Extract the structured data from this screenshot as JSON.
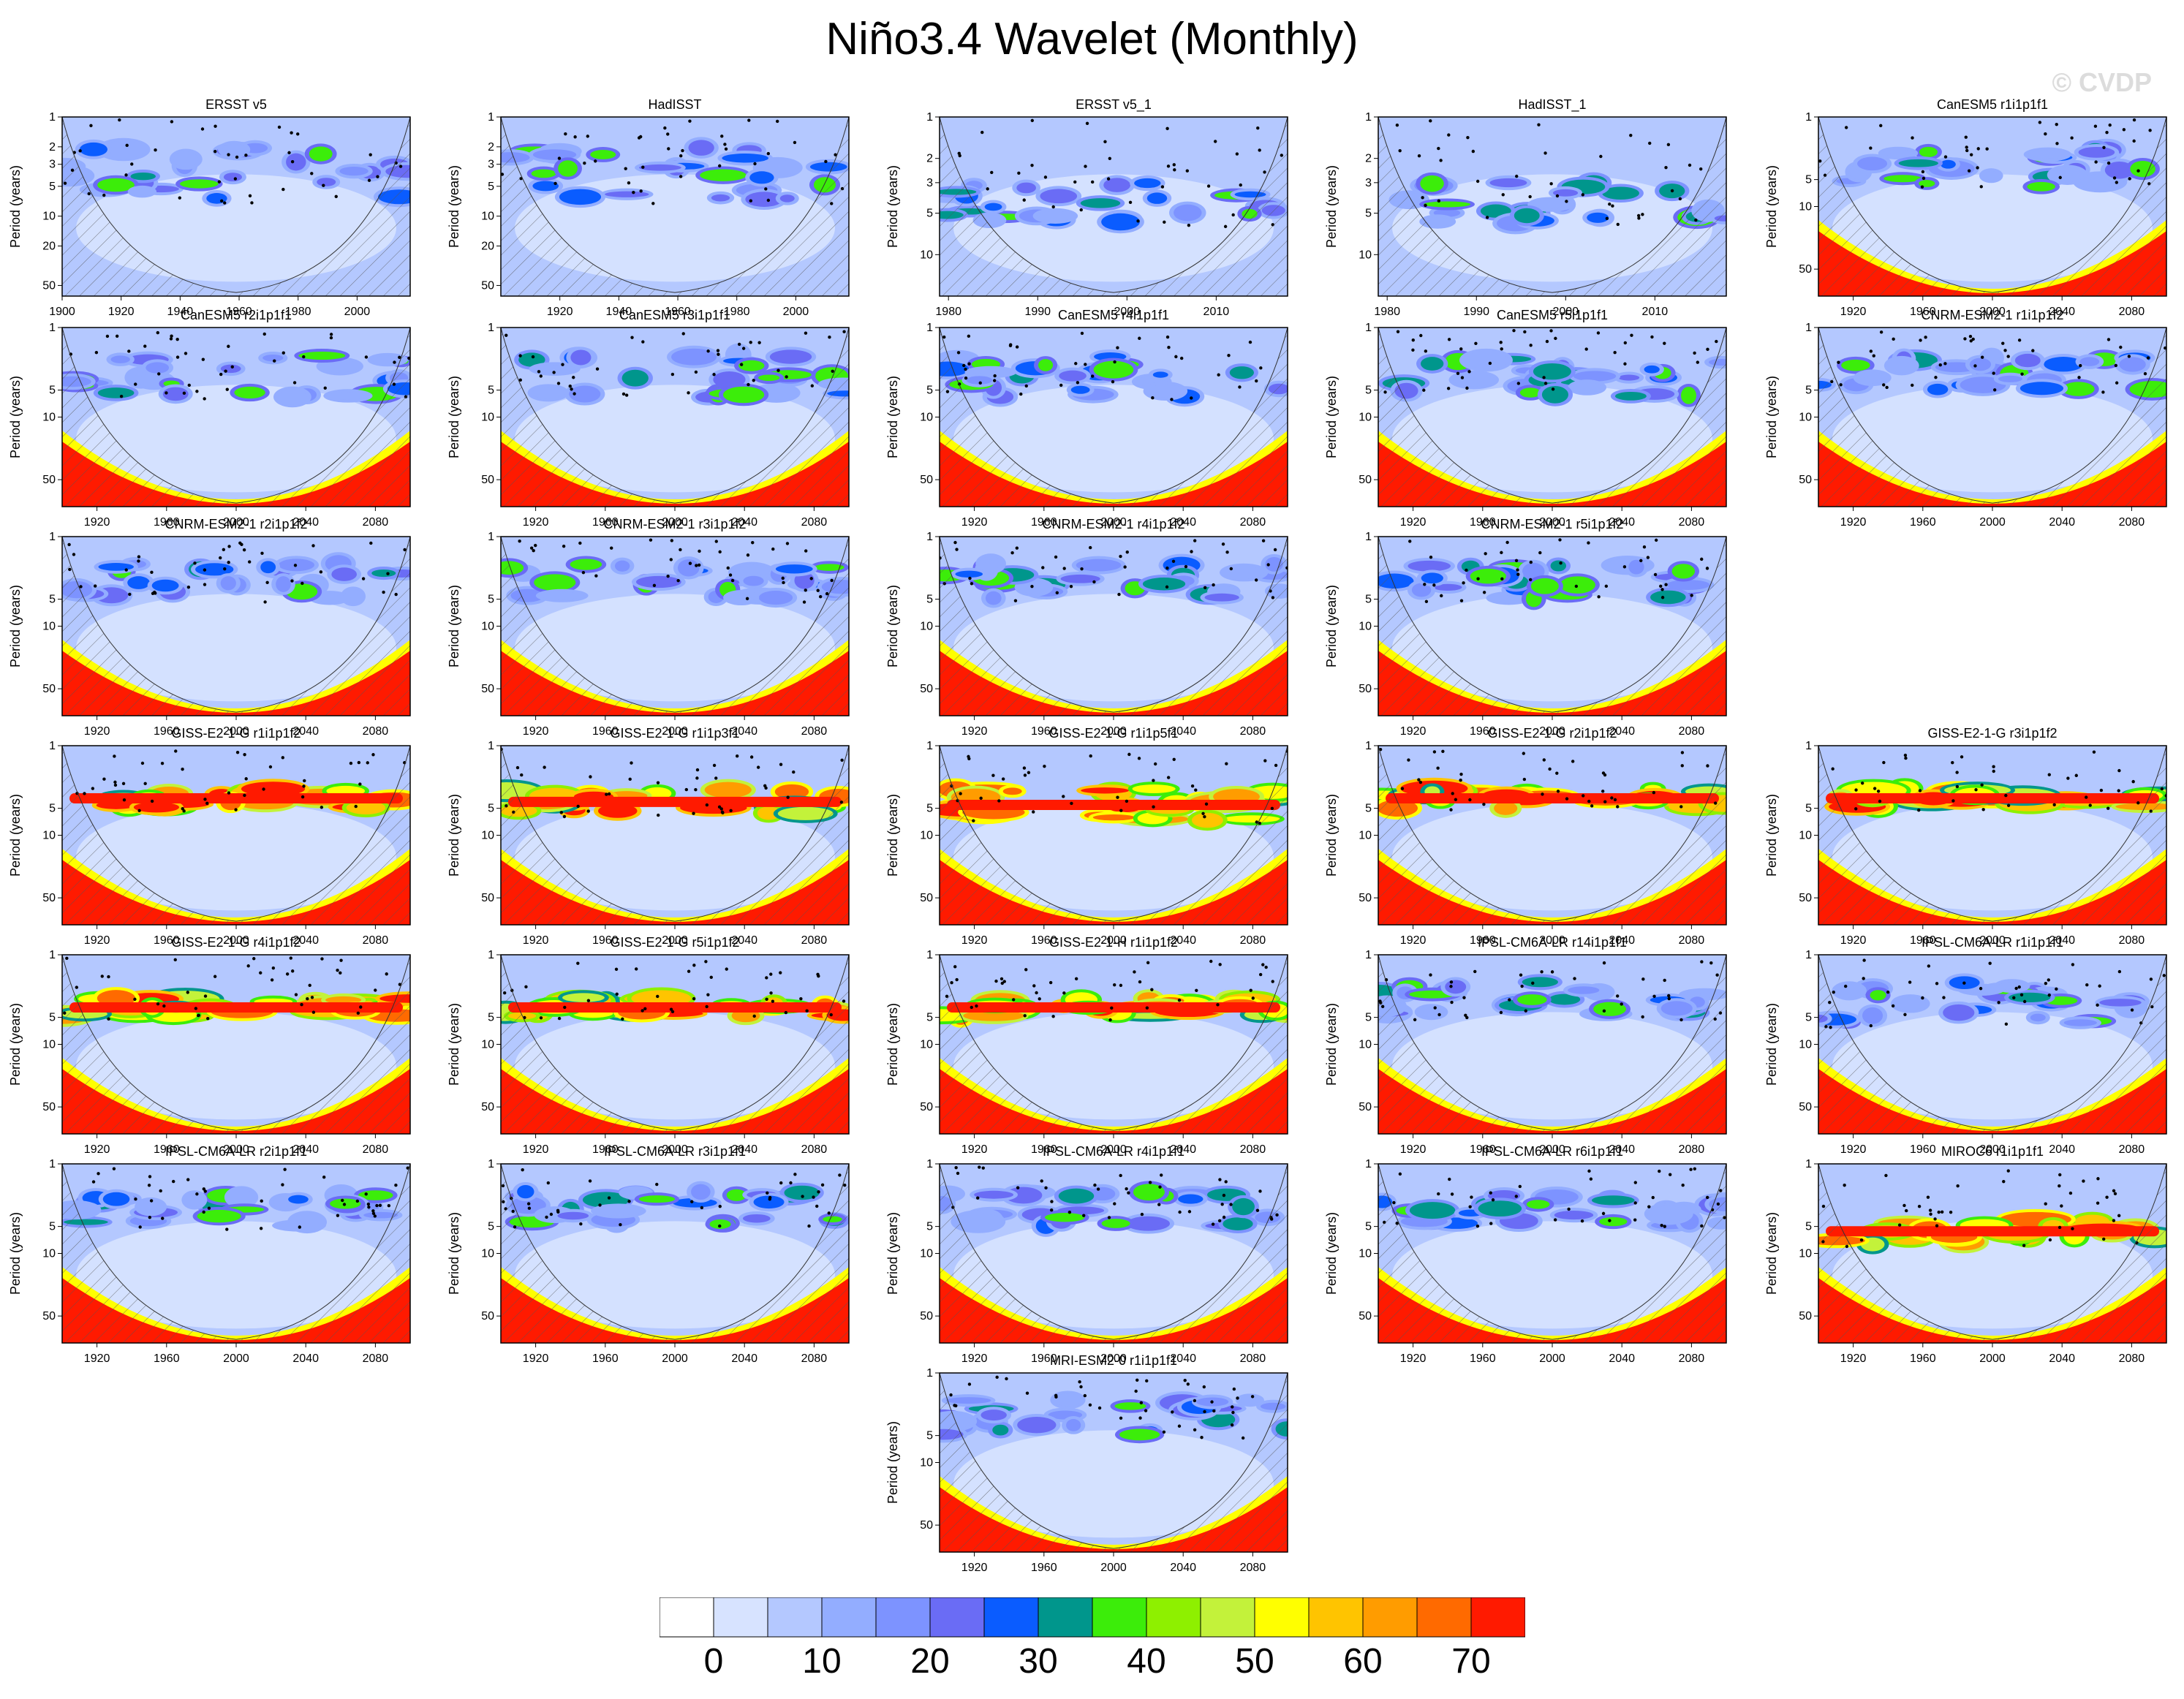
{
  "title": "Niño3.4 Wavelet (Monthly)",
  "watermark": "© CVDP",
  "colors": {
    "levels": [
      "#ffffff",
      "#d7e3ff",
      "#b4c8ff",
      "#93adff",
      "#7d93ff",
      "#6a6cf5",
      "#0a5cff",
      "#00968c",
      "#3ced0a",
      "#8ef000",
      "#c3f23a",
      "#ffff00",
      "#ffc400",
      "#ff9c00",
      "#ff6a00",
      "#ff1a00"
    ]
  },
  "colorbar": {
    "labels": [
      {
        "value": "0",
        "index": 1
      },
      {
        "value": "10",
        "index": 3
      },
      {
        "value": "20",
        "index": 5
      },
      {
        "value": "30",
        "index": 7
      },
      {
        "value": "40",
        "index": 9
      },
      {
        "value": "50",
        "index": 11
      },
      {
        "value": "60",
        "index": 13
      },
      {
        "value": "70",
        "index": 15
      }
    ]
  },
  "chart_data": [
    {
      "type": "heatmap",
      "title": "ERSST v5",
      "ylabel": "Period (years)",
      "xlim": [
        1900,
        2018
      ],
      "xticks": [
        "1900",
        "1920",
        "1940",
        "1960",
        "1980",
        "2000"
      ],
      "yticks": [
        "1",
        "2",
        "3",
        "5",
        "10",
        "20",
        "50"
      ],
      "ylim": [
        1,
        64
      ],
      "log_y": true,
      "dominant_period": [
        2,
        7
      ],
      "notes": "moderate power 2-7 yr, significance stippling"
    },
    {
      "type": "heatmap",
      "title": "HadISST",
      "ylabel": "Period (years)",
      "xlim": [
        1900,
        2018
      ],
      "xticks": [
        "1920",
        "1940",
        "1960",
        "1980",
        "2000"
      ],
      "yticks": [
        "1",
        "2",
        "3",
        "5",
        "10",
        "20",
        "50"
      ],
      "ylim": [
        1,
        64
      ],
      "log_y": true,
      "dominant_period": [
        2,
        7
      ]
    },
    {
      "type": "heatmap",
      "title": "ERSST v5_1",
      "ylabel": "Period (years)",
      "xlim": [
        1979,
        2018
      ],
      "xticks": [
        "1980",
        "1990",
        "2000",
        "2010"
      ],
      "yticks": [
        "1",
        "2",
        "3",
        "5",
        "10"
      ],
      "ylim": [
        1,
        20
      ],
      "log_y": true,
      "dominant_period": [
        3,
        6
      ]
    },
    {
      "type": "heatmap",
      "title": "HadISST_1",
      "ylabel": "Period (years)",
      "xlim": [
        1979,
        2018
      ],
      "xticks": [
        "1980",
        "1990",
        "2000",
        "2010"
      ],
      "yticks": [
        "1",
        "2",
        "3",
        "5",
        "10"
      ],
      "ylim": [
        1,
        20
      ],
      "log_y": true,
      "dominant_period": [
        3,
        6
      ]
    },
    {
      "type": "heatmap",
      "title": "CanESM5 r1i1p1f1",
      "ylabel": "Period (years)",
      "xlim": [
        1900,
        2100
      ],
      "xticks": [
        "1920",
        "1960",
        "2000",
        "2040",
        "2080"
      ],
      "yticks": [
        "1",
        "5",
        "10",
        "50"
      ],
      "ylim": [
        1,
        100
      ],
      "log_y": true,
      "dominant_period": [
        2,
        6
      ]
    },
    {
      "type": "heatmap",
      "title": "CanESM5 r2i1p1f1",
      "ylabel": "Period (years)",
      "xlim": [
        1900,
        2100
      ],
      "xticks": [
        "1920",
        "1960",
        "2000",
        "2040",
        "2080"
      ],
      "yticks": [
        "1",
        "5",
        "10",
        "50"
      ],
      "ylim": [
        1,
        100
      ],
      "log_y": true,
      "dominant_period": [
        2,
        6
      ]
    },
    {
      "type": "heatmap",
      "title": "CanESM5 r3i1p1f1",
      "ylabel": "Period (years)",
      "xlim": [
        1900,
        2100
      ],
      "xticks": [
        "1920",
        "1960",
        "2000",
        "2040",
        "2080"
      ],
      "yticks": [
        "1",
        "5",
        "10",
        "50"
      ],
      "ylim": [
        1,
        100
      ],
      "log_y": true,
      "dominant_period": [
        2,
        6
      ]
    },
    {
      "type": "heatmap",
      "title": "CanESM5 r4i1p1f1",
      "ylabel": "Period (years)",
      "xlim": [
        1900,
        2100
      ],
      "xticks": [
        "1920",
        "1960",
        "2000",
        "2040",
        "2080"
      ],
      "yticks": [
        "1",
        "5",
        "10",
        "50"
      ],
      "ylim": [
        1,
        100
      ],
      "log_y": true,
      "dominant_period": [
        2,
        6
      ]
    },
    {
      "type": "heatmap",
      "title": "CanESM5 r5i1p1f1",
      "ylabel": "Period (years)",
      "xlim": [
        1900,
        2100
      ],
      "xticks": [
        "1920",
        "1960",
        "2000",
        "2040",
        "2080"
      ],
      "yticks": [
        "1",
        "5",
        "10",
        "50"
      ],
      "ylim": [
        1,
        100
      ],
      "log_y": true,
      "dominant_period": [
        2,
        6
      ]
    },
    {
      "type": "heatmap",
      "title": "CNRM-ESM2-1 r1i1p1f2",
      "ylabel": "Period (years)",
      "xlim": [
        1900,
        2100
      ],
      "xticks": [
        "1920",
        "1960",
        "2000",
        "2040",
        "2080"
      ],
      "yticks": [
        "1",
        "5",
        "10",
        "50"
      ],
      "ylim": [
        1,
        100
      ],
      "log_y": true,
      "dominant_period": [
        2,
        5
      ]
    },
    {
      "type": "heatmap",
      "title": "CNRM-ESM2-1 r2i1p1f2",
      "ylabel": "Period (years)",
      "xlim": [
        1900,
        2100
      ],
      "xticks": [
        "1920",
        "1960",
        "2000",
        "2040",
        "2080"
      ],
      "yticks": [
        "1",
        "5",
        "10",
        "50"
      ],
      "ylim": [
        1,
        100
      ],
      "log_y": true,
      "dominant_period": [
        2,
        5
      ]
    },
    {
      "type": "heatmap",
      "title": "CNRM-ESM2-1 r3i1p1f2",
      "ylabel": "Period (years)",
      "xlim": [
        1900,
        2100
      ],
      "xticks": [
        "1920",
        "1960",
        "2000",
        "2040",
        "2080"
      ],
      "yticks": [
        "1",
        "5",
        "10",
        "50"
      ],
      "ylim": [
        1,
        100
      ],
      "log_y": true,
      "dominant_period": [
        2,
        5
      ]
    },
    {
      "type": "heatmap",
      "title": "CNRM-ESM2-1 r4i1p1f2",
      "ylabel": "Period (years)",
      "xlim": [
        1900,
        2100
      ],
      "xticks": [
        "1920",
        "1960",
        "2000",
        "2040",
        "2080"
      ],
      "yticks": [
        "1",
        "5",
        "10",
        "50"
      ],
      "ylim": [
        1,
        100
      ],
      "log_y": true,
      "dominant_period": [
        2,
        5
      ]
    },
    {
      "type": "heatmap",
      "title": "CNRM-ESM2-1 r5i1p1f2",
      "ylabel": "Period (years)",
      "xlim": [
        1900,
        2100
      ],
      "xticks": [
        "1920",
        "1960",
        "2000",
        "2040",
        "2080"
      ],
      "yticks": [
        "1",
        "5",
        "10",
        "50"
      ],
      "ylim": [
        1,
        100
      ],
      "log_y": true,
      "dominant_period": [
        2,
        5
      ]
    },
    {
      "type": "heatmap",
      "title": "GISS-E2-1-G r1i1p1f2",
      "ylabel": "Period (years)",
      "xlim": [
        1900,
        2100
      ],
      "xticks": [
        "1920",
        "1960",
        "2000",
        "2040",
        "2080"
      ],
      "yticks": [
        "1",
        "5",
        "10",
        "50"
      ],
      "ylim": [
        1,
        100
      ],
      "log_y": true,
      "dominant_period": [
        3,
        5
      ]
    },
    {
      "type": "heatmap",
      "title": "GISS-E2-1-G r1i1p3f1",
      "ylabel": "Period (years)",
      "xlim": [
        1900,
        2100
      ],
      "xticks": [
        "1920",
        "1960",
        "2000",
        "2040",
        "2080"
      ],
      "yticks": [
        "1",
        "5",
        "10",
        "50"
      ],
      "ylim": [
        1,
        100
      ],
      "log_y": true,
      "dominant_period": [
        3,
        6
      ]
    },
    {
      "type": "heatmap",
      "title": "GISS-E2-1-G r1i1p5f1",
      "ylabel": "Period (years)",
      "xlim": [
        1900,
        2100
      ],
      "xticks": [
        "1920",
        "1960",
        "2000",
        "2040",
        "2080"
      ],
      "yticks": [
        "1",
        "5",
        "10",
        "50"
      ],
      "ylim": [
        1,
        100
      ],
      "log_y": true,
      "dominant_period": [
        3,
        7
      ]
    },
    {
      "type": "heatmap",
      "title": "GISS-E2-1-G r2i1p1f2",
      "ylabel": "Period (years)",
      "xlim": [
        1900,
        2100
      ],
      "xticks": [
        "1920",
        "1960",
        "2000",
        "2040",
        "2080"
      ],
      "yticks": [
        "1",
        "5",
        "10",
        "50"
      ],
      "ylim": [
        1,
        100
      ],
      "log_y": true,
      "dominant_period": [
        3,
        5
      ]
    },
    {
      "type": "heatmap",
      "title": "GISS-E2-1-G r3i1p1f2",
      "ylabel": "Period (years)",
      "xlim": [
        1900,
        2100
      ],
      "xticks": [
        "1920",
        "1960",
        "2000",
        "2040",
        "2080"
      ],
      "yticks": [
        "1",
        "5",
        "10",
        "50"
      ],
      "ylim": [
        1,
        100
      ],
      "log_y": true,
      "dominant_period": [
        3,
        5
      ]
    },
    {
      "type": "heatmap",
      "title": "GISS-E2-1-G r4i1p1f2",
      "ylabel": "Period (years)",
      "xlim": [
        1900,
        2100
      ],
      "xticks": [
        "1920",
        "1960",
        "2000",
        "2040",
        "2080"
      ],
      "yticks": [
        "1",
        "5",
        "10",
        "50"
      ],
      "ylim": [
        1,
        100
      ],
      "log_y": true,
      "dominant_period": [
        3,
        5
      ]
    },
    {
      "type": "heatmap",
      "title": "GISS-E2-1-G r5i1p1f2",
      "ylabel": "Period (years)",
      "xlim": [
        1900,
        2100
      ],
      "xticks": [
        "1920",
        "1960",
        "2000",
        "2040",
        "2080"
      ],
      "yticks": [
        "1",
        "5",
        "10",
        "50"
      ],
      "ylim": [
        1,
        100
      ],
      "log_y": true,
      "dominant_period": [
        3,
        5
      ]
    },
    {
      "type": "heatmap",
      "title": "GISS-E2-1-H r1i1p1f2",
      "ylabel": "Period (years)",
      "xlim": [
        1900,
        2100
      ],
      "xticks": [
        "1920",
        "1960",
        "2000",
        "2040",
        "2080"
      ],
      "yticks": [
        "1",
        "5",
        "10",
        "50"
      ],
      "ylim": [
        1,
        100
      ],
      "log_y": true,
      "dominant_period": [
        3,
        5
      ]
    },
    {
      "type": "heatmap",
      "title": "IPSL-CM6A-LR r14i1p1f1",
      "ylabel": "Period (years)",
      "xlim": [
        1900,
        2100
      ],
      "xticks": [
        "1920",
        "1960",
        "2000",
        "2040",
        "2080"
      ],
      "yticks": [
        "1",
        "5",
        "10",
        "50"
      ],
      "ylim": [
        1,
        100
      ],
      "log_y": true,
      "dominant_period": [
        2,
        5
      ]
    },
    {
      "type": "heatmap",
      "title": "IPSL-CM6A-LR r1i1p1f1",
      "ylabel": "Period (years)",
      "xlim": [
        1900,
        2100
      ],
      "xticks": [
        "1920",
        "1960",
        "2000",
        "2040",
        "2080"
      ],
      "yticks": [
        "1",
        "5",
        "10",
        "50"
      ],
      "ylim": [
        1,
        100
      ],
      "log_y": true,
      "dominant_period": [
        2,
        6
      ]
    },
    {
      "type": "heatmap",
      "title": "IPSL-CM6A-LR r2i1p1f1",
      "ylabel": "Period (years)",
      "xlim": [
        1900,
        2100
      ],
      "xticks": [
        "1920",
        "1960",
        "2000",
        "2040",
        "2080"
      ],
      "yticks": [
        "1",
        "5",
        "10",
        "50"
      ],
      "ylim": [
        1,
        100
      ],
      "log_y": true,
      "dominant_period": [
        2,
        5
      ]
    },
    {
      "type": "heatmap",
      "title": "IPSL-CM6A-LR r3i1p1f1",
      "ylabel": "Period (years)",
      "xlim": [
        1900,
        2100
      ],
      "xticks": [
        "1920",
        "1960",
        "2000",
        "2040",
        "2080"
      ],
      "yticks": [
        "1",
        "5",
        "10",
        "50"
      ],
      "ylim": [
        1,
        100
      ],
      "log_y": true,
      "dominant_period": [
        2,
        5
      ]
    },
    {
      "type": "heatmap",
      "title": "IPSL-CM6A-LR r4i1p1f1",
      "ylabel": "Period (years)",
      "xlim": [
        1900,
        2100
      ],
      "xticks": [
        "1920",
        "1960",
        "2000",
        "2040",
        "2080"
      ],
      "yticks": [
        "1",
        "5",
        "10",
        "50"
      ],
      "ylim": [
        1,
        100
      ],
      "log_y": true,
      "dominant_period": [
        2,
        5
      ]
    },
    {
      "type": "heatmap",
      "title": "IPSL-CM6A-LR r6i1p1f1",
      "ylabel": "Period (years)",
      "xlim": [
        1900,
        2100
      ],
      "xticks": [
        "1920",
        "1960",
        "2000",
        "2040",
        "2080"
      ],
      "yticks": [
        "1",
        "5",
        "10",
        "50"
      ],
      "ylim": [
        1,
        100
      ],
      "log_y": true,
      "dominant_period": [
        2,
        5
      ]
    },
    {
      "type": "heatmap",
      "title": "MIROC6 r1i1p1f1",
      "ylabel": "Period (years)",
      "xlim": [
        1900,
        2100
      ],
      "xticks": [
        "1920",
        "1960",
        "2000",
        "2040",
        "2080"
      ],
      "yticks": [
        "1",
        "5",
        "10",
        "50"
      ],
      "ylim": [
        1,
        100
      ],
      "log_y": true,
      "dominant_period": [
        4,
        8
      ]
    },
    {
      "type": "heatmap",
      "title": "MRI-ESM2-0 r1i1p1f1",
      "ylabel": "Period (years)",
      "xlim": [
        1900,
        2100
      ],
      "xticks": [
        "1920",
        "1960",
        "2000",
        "2040",
        "2080"
      ],
      "yticks": [
        "1",
        "5",
        "10",
        "50"
      ],
      "ylim": [
        1,
        100
      ],
      "log_y": true,
      "dominant_period": [
        2,
        5
      ]
    }
  ]
}
